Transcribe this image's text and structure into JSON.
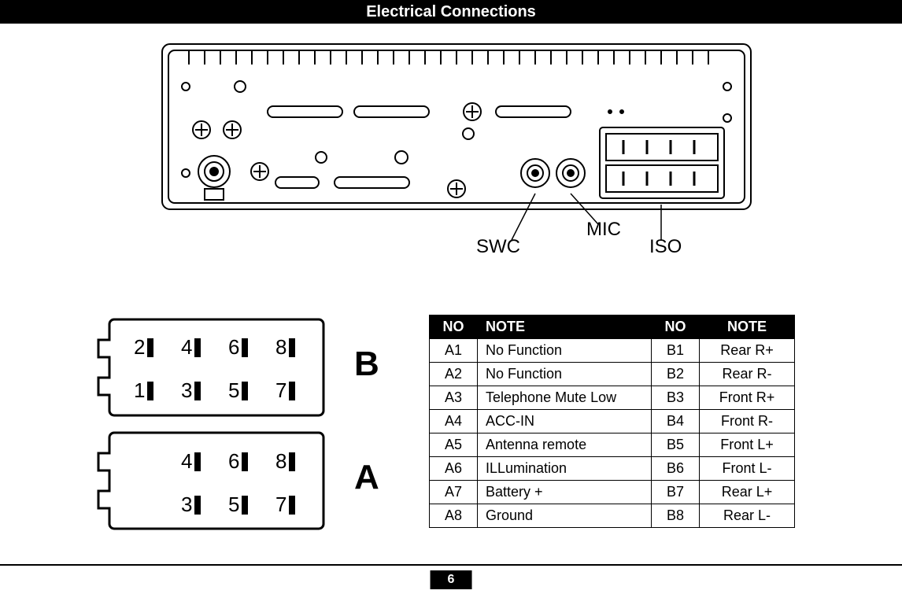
{
  "title": "Electrical Connections",
  "page_number": "6",
  "panel": {
    "labels": {
      "swc": "SWC",
      "mic": "MIC",
      "iso": "ISO"
    },
    "stroke": "#000000",
    "fill": "#ffffff"
  },
  "connector": {
    "letter_b": "B",
    "letter_a": "A",
    "b_pins_top": [
      "2",
      "4",
      "6",
      "8"
    ],
    "b_pins_bottom": [
      "1",
      "3",
      "5",
      "7"
    ],
    "a_pins_top": [
      "4",
      "6",
      "8"
    ],
    "a_pins_bottom": [
      "3",
      "5",
      "7"
    ],
    "stroke": "#000000",
    "label_fontsize": 26
  },
  "pin_table": {
    "headers": [
      "NO",
      "NOTE",
      "NO",
      "NOTE"
    ],
    "rows": [
      {
        "a_no": "A1",
        "a_note": "No Function",
        "b_no": "B1",
        "b_note": "Rear R+"
      },
      {
        "a_no": "A2",
        "a_note": "No Function",
        "b_no": "B2",
        "b_note": "Rear R-"
      },
      {
        "a_no": "A3",
        "a_note": "Telephone Mute Low",
        "b_no": "B3",
        "b_note": "Front R+"
      },
      {
        "a_no": "A4",
        "a_note": "ACC-IN",
        "b_no": "B4",
        "b_note": "Front R-"
      },
      {
        "a_no": "A5",
        "a_note": "Antenna remote",
        "b_no": "B5",
        "b_note": "Front L+"
      },
      {
        "a_no": "A6",
        "a_note": "ILLumination",
        "b_no": "B6",
        "b_note": "Front L-"
      },
      {
        "a_no": "A7",
        "a_note": "Battery +",
        "b_no": "B7",
        "b_note": "Rear L+"
      },
      {
        "a_no": "A8",
        "a_note": "Ground",
        "b_no": "B8",
        "b_note": "Rear L-"
      }
    ],
    "header_bg": "#000000",
    "header_fg": "#ffffff",
    "border": "#000000",
    "fontsize": 18
  }
}
